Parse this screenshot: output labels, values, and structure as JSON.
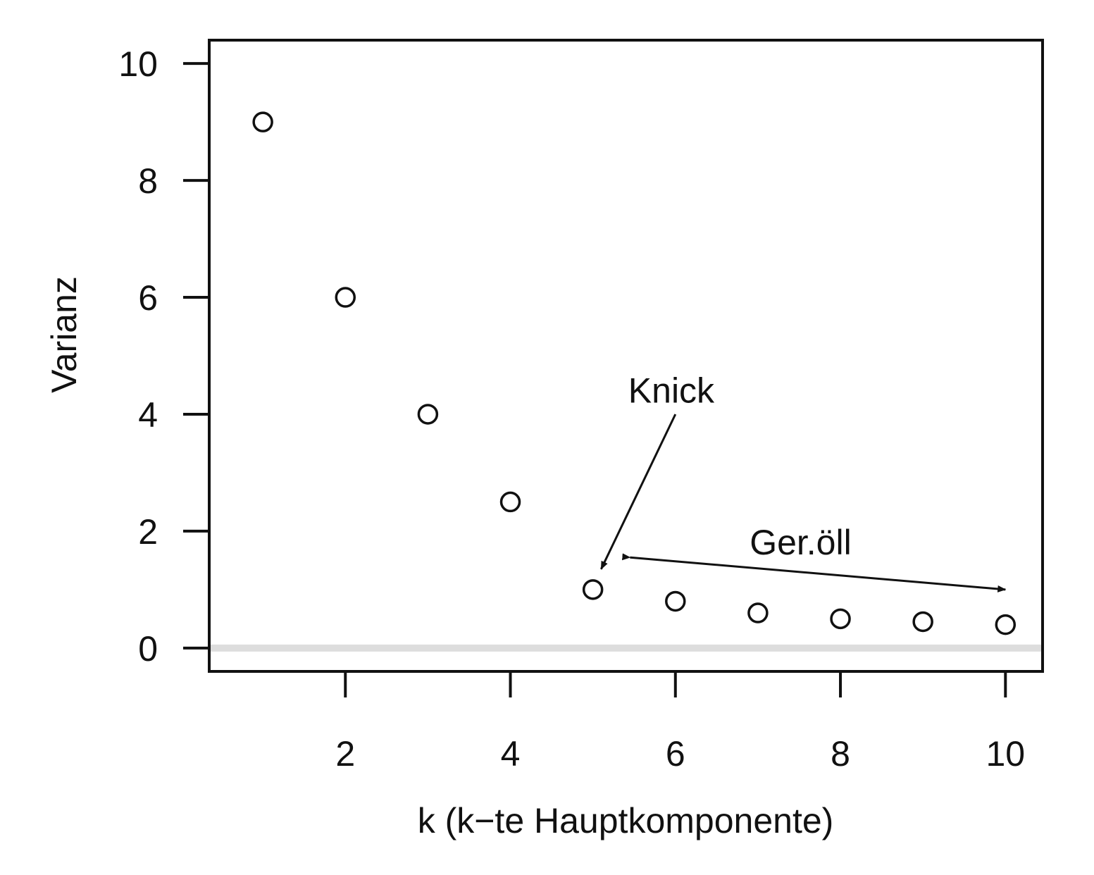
{
  "chart_data": {
    "type": "scatter",
    "title": "",
    "xlabel": "k (k−te Hauptkomponente)",
    "ylabel": "Varianz",
    "xlim": [
      0.35,
      10.45
    ],
    "ylim": [
      -0.4,
      10.4
    ],
    "xticks": [
      2,
      4,
      6,
      8,
      10
    ],
    "yticks": [
      0,
      2,
      4,
      6,
      8,
      10
    ],
    "grid": false,
    "legend": "none",
    "x": [
      1,
      2,
      3,
      4,
      5,
      6,
      7,
      8,
      9,
      10
    ],
    "y": [
      9.0,
      6.0,
      4.0,
      2.5,
      1.0,
      0.8,
      0.6,
      0.5,
      0.45,
      0.4
    ],
    "baseline": {
      "y": 0,
      "color": "#dddddd"
    },
    "annotations": [
      {
        "label": "Knick",
        "text_at": [
          5.95,
          4.2
        ],
        "arrow_from": [
          6.0,
          4.0
        ],
        "arrow_to": [
          5.1,
          1.35
        ]
      },
      {
        "label": "Ger.öll",
        "text_at": [
          6.9,
          1.6
        ],
        "arrow_from": [
          5.45,
          1.55
        ],
        "arrow_to": [
          10.0,
          1.0
        ],
        "double_headed": true
      }
    ]
  }
}
